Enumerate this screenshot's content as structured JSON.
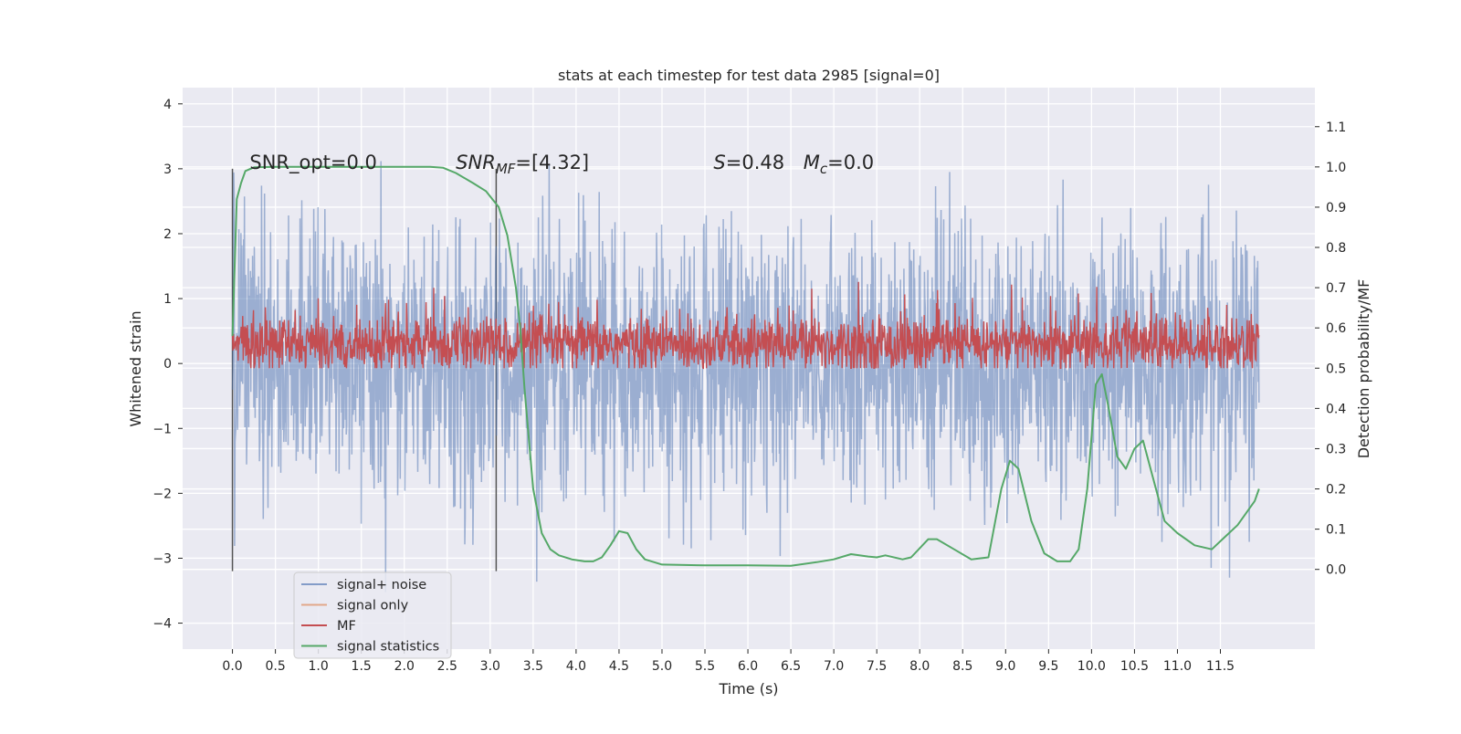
{
  "chart_data": {
    "type": "line",
    "title": "stats at each timestep for test data 2985 [signal=0]",
    "xlabel": "Time (s)",
    "ylabel_left": "Whitened strain",
    "ylabel_right": "Detection probability/MF",
    "xlim": [
      -0.58,
      12.6
    ],
    "ylim_left": [
      -4.4,
      4.25
    ],
    "ylim_right": [
      -0.198,
      1.197
    ],
    "x_ticks": [
      0.0,
      0.5,
      1.0,
      1.5,
      2.0,
      2.5,
      3.0,
      3.5,
      4.0,
      4.5,
      5.0,
      5.5,
      6.0,
      6.5,
      7.0,
      7.5,
      8.0,
      8.5,
      9.0,
      9.5,
      10.0,
      10.5,
      11.0,
      11.5
    ],
    "x_tick_labels": [
      "0.0",
      "0.5",
      "1.0",
      "1.5",
      "2.0",
      "2.5",
      "3.0",
      "3.5",
      "4.0",
      "4.5",
      "5.0",
      "5.5",
      "6.0",
      "6.5",
      "7.0",
      "7.5",
      "8.0",
      "8.5",
      "9.0",
      "9.5",
      "10.0",
      "10.5",
      "11.0",
      "11.5"
    ],
    "y_left_ticks": [
      -4,
      -3,
      -2,
      -1,
      0,
      1,
      2,
      3,
      4
    ],
    "y_left_tick_labels": [
      "−4",
      "−3",
      "−2",
      "−1",
      "0",
      "1",
      "2",
      "3",
      "4"
    ],
    "y_right_ticks": [
      0.0,
      0.1,
      0.2,
      0.3,
      0.4,
      0.5,
      0.6,
      0.7,
      0.8,
      0.9,
      1.0,
      1.1
    ],
    "y_right_tick_labels": [
      "0.0",
      "0.1",
      "0.2",
      "0.3",
      "0.4",
      "0.5",
      "0.6",
      "0.7",
      "0.8",
      "0.9",
      "1.0",
      "1.1"
    ],
    "grid": true,
    "legend_position": "lower-left",
    "annotations": [
      {
        "text": "SNR_opt=0.0",
        "x": 0.2,
        "y": 3.0
      },
      {
        "html": "SNR_MF=[4.32]",
        "main": "SNR",
        "sub": "MF",
        "rest": "=[4.32]",
        "x": 2.6,
        "y": 3.0
      },
      {
        "html": "S=0.48   M_c=0.0",
        "main": "S",
        "rest1": "=0.48   ",
        "main2": "M",
        "sub2": "c",
        "rest2": "=0.0",
        "x": 5.6,
        "y": 3.0
      }
    ],
    "vlines": [
      {
        "x": 0.0,
        "ymin": -3.2,
        "ymax": 3.0
      },
      {
        "x": 3.07,
        "ymin": -3.2,
        "ymax": 3.0
      }
    ],
    "series": [
      {
        "name": "signal+ noise",
        "color": "#4c72b0",
        "alpha": 0.5,
        "axis": "left",
        "kind": "noise",
        "x_range": [
          0.0,
          11.95
        ],
        "approx_abs_max": 3.9
      },
      {
        "name": "signal only",
        "color": "#dd8452",
        "alpha": 0.5,
        "axis": "left",
        "values": []
      },
      {
        "name": "MF",
        "color": "#c44e52",
        "axis": "right",
        "kind": "band",
        "x_range": [
          0.0,
          11.95
        ],
        "center": 0.56,
        "spread": 0.05
      },
      {
        "name": "signal statistics",
        "color": "#55a868",
        "axis": "right",
        "x": [
          0.0,
          0.05,
          0.1,
          0.15,
          0.25,
          0.5,
          1.0,
          1.5,
          2.0,
          2.3,
          2.45,
          2.6,
          2.8,
          2.95,
          3.1,
          3.2,
          3.3,
          3.35,
          3.4,
          3.5,
          3.6,
          3.7,
          3.8,
          3.95,
          4.1,
          4.2,
          4.3,
          4.4,
          4.5,
          4.6,
          4.7,
          4.8,
          5.0,
          5.5,
          6.0,
          6.5,
          6.8,
          7.0,
          7.2,
          7.4,
          7.5,
          7.6,
          7.8,
          7.9,
          8.1,
          8.2,
          8.4,
          8.6,
          8.8,
          8.95,
          9.05,
          9.15,
          9.3,
          9.45,
          9.6,
          9.75,
          9.85,
          9.95,
          10.05,
          10.12,
          10.2,
          10.3,
          10.4,
          10.5,
          10.6,
          10.7,
          10.85,
          11.0,
          11.2,
          11.4,
          11.55,
          11.7,
          11.9,
          11.95
        ],
        "y": [
          0.58,
          0.92,
          0.96,
          0.99,
          0.999,
          1.0,
          1.0,
          1.0,
          1.0,
          1.0,
          0.998,
          0.985,
          0.96,
          0.94,
          0.9,
          0.83,
          0.7,
          0.6,
          0.45,
          0.2,
          0.09,
          0.05,
          0.035,
          0.025,
          0.02,
          0.02,
          0.03,
          0.06,
          0.095,
          0.09,
          0.05,
          0.025,
          0.012,
          0.01,
          0.01,
          0.009,
          0.018,
          0.025,
          0.038,
          0.032,
          0.03,
          0.035,
          0.025,
          0.03,
          0.075,
          0.075,
          0.05,
          0.025,
          0.03,
          0.2,
          0.27,
          0.25,
          0.12,
          0.04,
          0.02,
          0.02,
          0.05,
          0.2,
          0.46,
          0.485,
          0.4,
          0.28,
          0.25,
          0.3,
          0.32,
          0.24,
          0.12,
          0.09,
          0.06,
          0.05,
          0.08,
          0.11,
          0.17,
          0.2
        ]
      }
    ]
  }
}
